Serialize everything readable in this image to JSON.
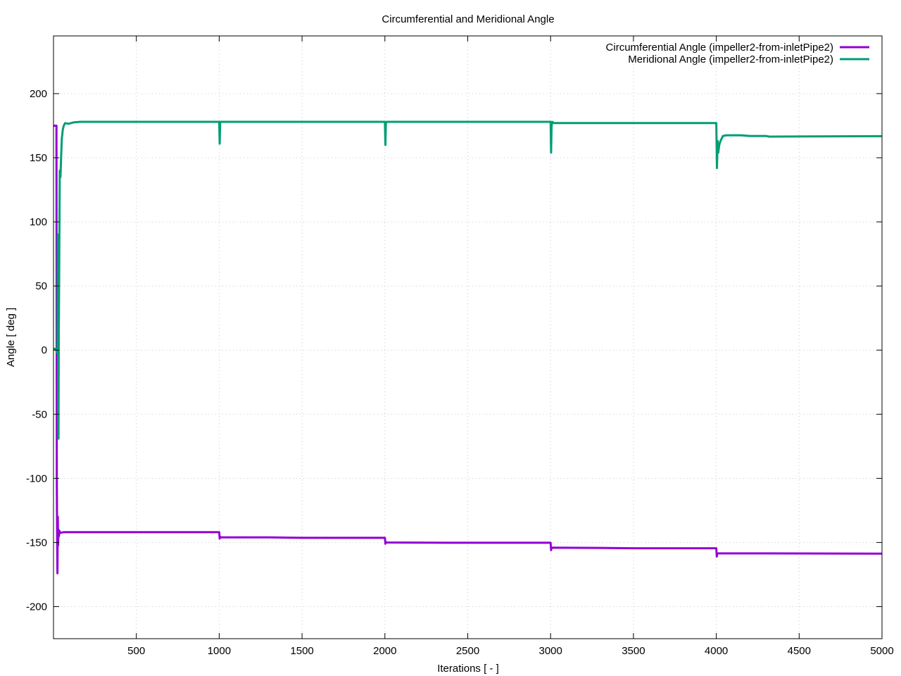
{
  "chart_data": {
    "type": "line",
    "title": "Circumferential and Meridional Angle",
    "xlabel": "Iterations [ - ]",
    "ylabel": "Angle [ deg ]",
    "xlim": [
      0,
      5000
    ],
    "ylim": [
      -225,
      245
    ],
    "xticks": [
      500,
      1000,
      1500,
      2000,
      2500,
      3000,
      3500,
      4000,
      4500,
      5000
    ],
    "xtick_labels": [
      "500",
      "1000",
      "1500",
      "2000",
      "2500",
      "3000",
      "3500",
      "4000",
      "4500",
      "5000"
    ],
    "yticks": [
      -200,
      -150,
      -100,
      -50,
      0,
      50,
      100,
      150,
      200
    ],
    "ytick_labels": [
      "-200",
      "-150",
      "-100",
      "-50",
      "0",
      "50",
      "100",
      "150",
      "200"
    ],
    "grid": true,
    "legend_position": "top-right",
    "series": [
      {
        "name": "Circumferential Angle (impeller2-from-inletPipe2)",
        "color": "#9400d3",
        "points": [
          [
            1,
            175
          ],
          [
            18,
            175
          ],
          [
            20,
            -100
          ],
          [
            22,
            -150
          ],
          [
            24,
            -174
          ],
          [
            26,
            -130
          ],
          [
            28,
            -152
          ],
          [
            30,
            -140
          ],
          [
            33,
            -145
          ],
          [
            36,
            -141
          ],
          [
            40,
            -142.5
          ],
          [
            60,
            -142
          ],
          [
            200,
            -142
          ],
          [
            500,
            -142
          ],
          [
            1000,
            -142
          ],
          [
            1003,
            -147
          ],
          [
            1006,
            -145.5
          ],
          [
            1010,
            -146
          ],
          [
            1300,
            -146
          ],
          [
            1500,
            -146.3
          ],
          [
            2000,
            -146.3
          ],
          [
            2003,
            -151
          ],
          [
            2006,
            -149.5
          ],
          [
            2010,
            -150
          ],
          [
            2500,
            -150.2
          ],
          [
            3000,
            -150.2
          ],
          [
            3003,
            -156
          ],
          [
            3006,
            -154
          ],
          [
            3010,
            -154
          ],
          [
            3300,
            -154.2
          ],
          [
            3500,
            -154.5
          ],
          [
            4000,
            -154.5
          ],
          [
            4003,
            -161
          ],
          [
            4006,
            -158.5
          ],
          [
            4010,
            -158.5
          ],
          [
            4300,
            -158.5
          ],
          [
            5000,
            -158.7
          ]
        ]
      },
      {
        "name": "Meridional Angle (impeller2-from-inletPipe2)",
        "color": "#009e73",
        "points": [
          [
            1,
            1
          ],
          [
            14,
            1
          ],
          [
            20,
            -2
          ],
          [
            24,
            0
          ],
          [
            26,
            90
          ],
          [
            28,
            -50
          ],
          [
            30,
            -69
          ],
          [
            32,
            10
          ],
          [
            35,
            70
          ],
          [
            38,
            140
          ],
          [
            42,
            135
          ],
          [
            46,
            150
          ],
          [
            50,
            165
          ],
          [
            53,
            168
          ],
          [
            56,
            172
          ],
          [
            62,
            175
          ],
          [
            70,
            177
          ],
          [
            90,
            176.5
          ],
          [
            120,
            177.5
          ],
          [
            160,
            178
          ],
          [
            1000,
            178
          ],
          [
            1003,
            161
          ],
          [
            1006,
            178
          ],
          [
            1200,
            178
          ],
          [
            2000,
            178
          ],
          [
            2003,
            160
          ],
          [
            2006,
            177
          ],
          [
            2010,
            178
          ],
          [
            2500,
            178
          ],
          [
            3000,
            178
          ],
          [
            3003,
            154
          ],
          [
            3006,
            175
          ],
          [
            3010,
            178
          ],
          [
            3020,
            177
          ],
          [
            3500,
            177
          ],
          [
            4000,
            177
          ],
          [
            4004,
            142
          ],
          [
            4008,
            163
          ],
          [
            4012,
            154
          ],
          [
            4018,
            160
          ],
          [
            4025,
            163
          ],
          [
            4040,
            167
          ],
          [
            4060,
            167.5
          ],
          [
            4150,
            167.5
          ],
          [
            4200,
            167
          ],
          [
            4300,
            167
          ],
          [
            4320,
            166.5
          ],
          [
            5000,
            166.8
          ]
        ]
      }
    ]
  }
}
